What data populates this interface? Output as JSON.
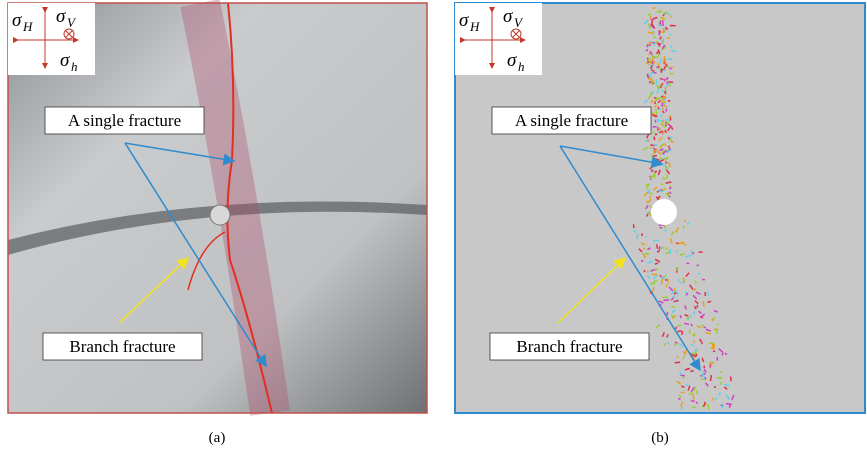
{
  "panels": [
    {
      "caption": "(a)",
      "stress": {
        "sigma_H": {
          "symbol": "σ",
          "sub": "H"
        },
        "sigma_V": {
          "symbol": "σ",
          "sub": "V"
        },
        "sigma_h": {
          "symbol": "σ",
          "sub": "h"
        }
      },
      "annotations": [
        "A single fracture",
        "Branch fracture"
      ]
    },
    {
      "caption": "(b)",
      "stress": {
        "sigma_H": {
          "symbol": "σ",
          "sub": "H"
        },
        "sigma_V": {
          "symbol": "σ",
          "sub": "V"
        },
        "sigma_h": {
          "symbol": "σ",
          "sub": "h"
        }
      },
      "annotations": [
        "A single fracture",
        "Branch fracture"
      ]
    }
  ]
}
